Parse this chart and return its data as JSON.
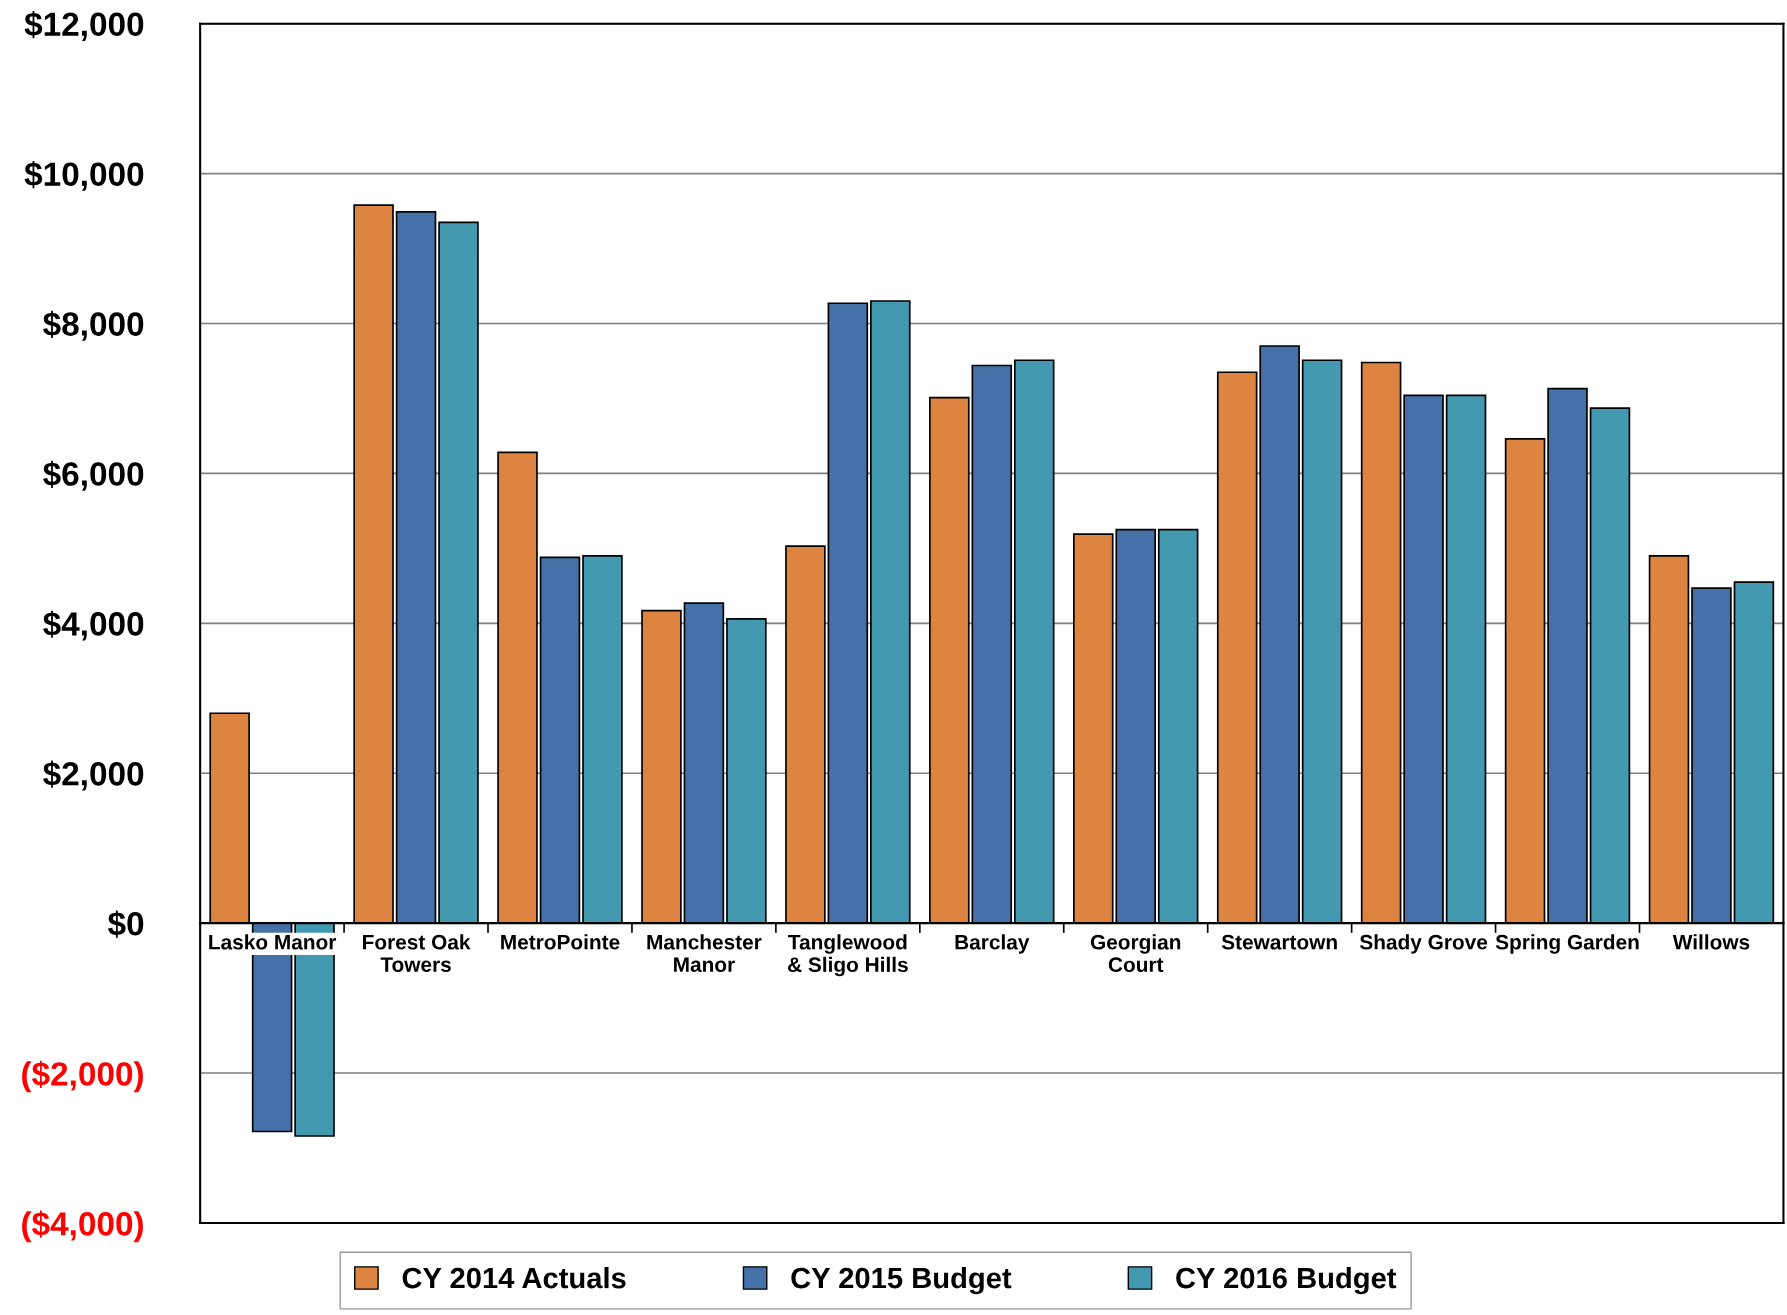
{
  "chart_data": {
    "type": "bar",
    "categories": [
      "Lasko Manor",
      "Forest Oak\nTowers",
      "MetroPointe",
      "Manchester\nManor",
      "Tanglewood\n& Sligo Hills",
      "Barclay",
      "Georgian\nCourt",
      "Stewartown",
      "Shady Grove",
      "Spring Garden",
      "Willows"
    ],
    "series": [
      {
        "name": "CY 2014 Actuals",
        "color": "#dd8540",
        "values": [
          2800,
          9580,
          6280,
          4170,
          5030,
          7010,
          5190,
          7350,
          7480,
          6460,
          4900
        ]
      },
      {
        "name": "CY 2015 Budget",
        "color": "#4472a8",
        "values": [
          -2780,
          9490,
          4880,
          4270,
          8270,
          7440,
          5250,
          7700,
          7040,
          7130,
          4470
        ]
      },
      {
        "name": "CY 2016 Budget",
        "color": "#4299b0",
        "values": [
          -2840,
          9350,
          4900,
          4060,
          8300,
          7510,
          5250,
          7510,
          7040,
          6870,
          4550
        ]
      }
    ],
    "ylim": [
      -4000,
      12000
    ],
    "yticks": [
      {
        "value": -4000,
        "label": "($4,000)"
      },
      {
        "value": -2000,
        "label": "($2,000)"
      },
      {
        "value": 0,
        "label": "$0"
      },
      {
        "value": 2000,
        "label": "$2,000"
      },
      {
        "value": 4000,
        "label": "$4,000"
      },
      {
        "value": 6000,
        "label": "$6,000"
      },
      {
        "value": 8000,
        "label": "$8,000"
      },
      {
        "value": 10000,
        "label": "$10,000"
      },
      {
        "value": 12000,
        "label": "$12,000"
      }
    ],
    "grid": "y",
    "legend": "bottom"
  }
}
